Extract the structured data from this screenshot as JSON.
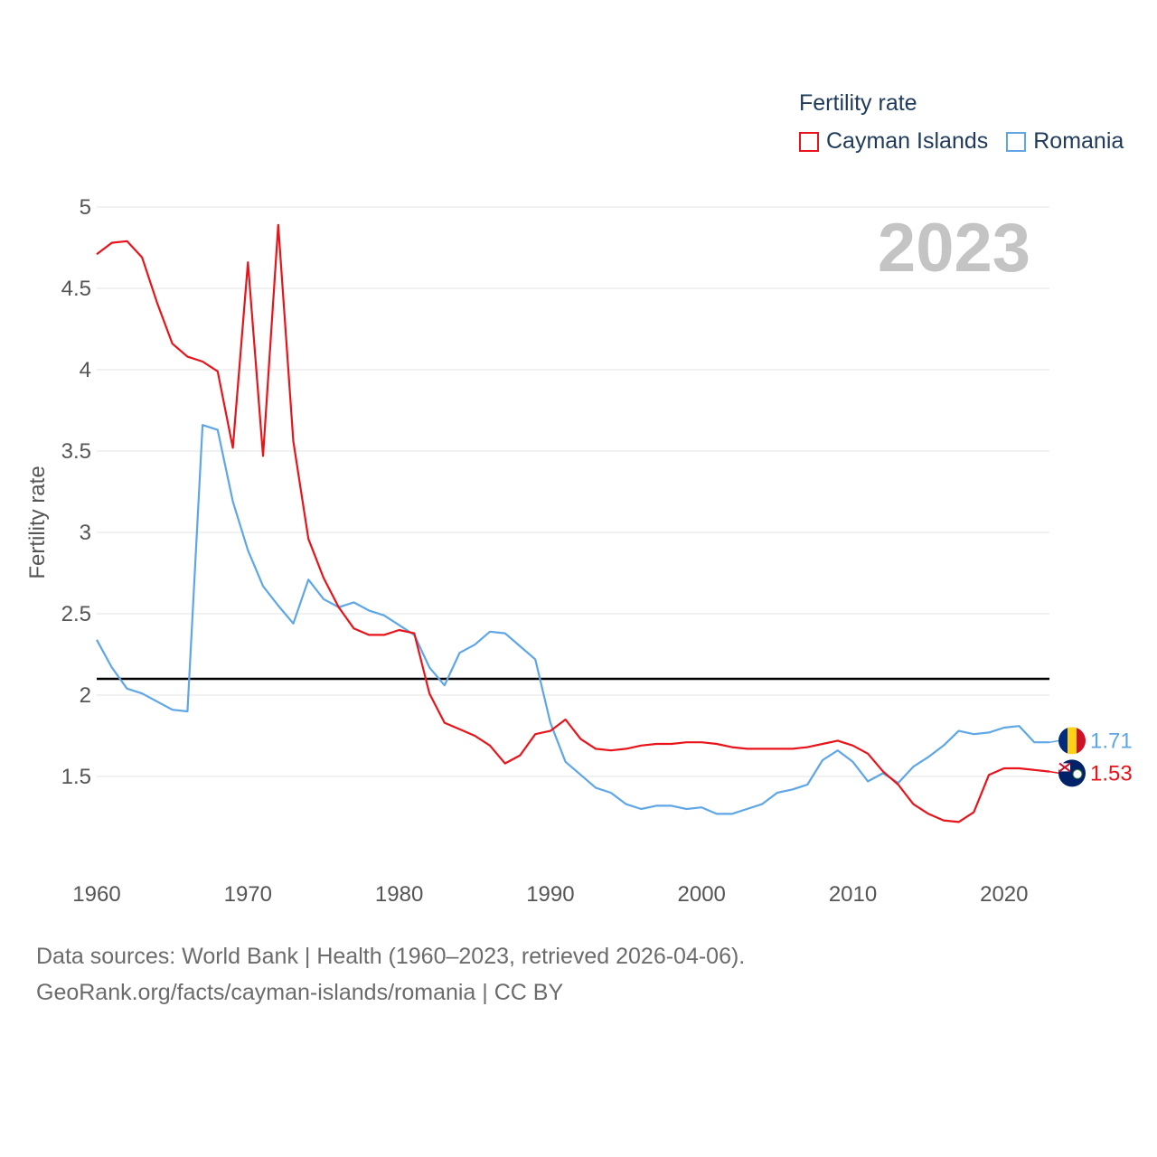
{
  "legend": {
    "title": "Fertility rate",
    "items": [
      {
        "name": "Cayman Islands",
        "color": "#e8141a"
      },
      {
        "name": "Romania",
        "color": "#5ea6e6"
      }
    ]
  },
  "footer": {
    "line1": "Data sources: World Bank | Health (1960–2023, retrieved 2026-04-06).",
    "line2": "GeoRank.org/facts/cayman-islands/romania | CC BY"
  },
  "chart_data": {
    "type": "line",
    "title": "Fertility rate",
    "year_label": "2023",
    "xlabel": "",
    "ylabel": "Fertility rate",
    "xlim": [
      1960,
      2023
    ],
    "ylim": [
      1.0,
      5.0
    ],
    "x_ticks": [
      1960,
      1970,
      1980,
      1990,
      2000,
      2010,
      2020
    ],
    "y_ticks": [
      1.5,
      2,
      2.5,
      3,
      3.5,
      4,
      4.5,
      5
    ],
    "reference_line": {
      "y": 2.1,
      "color": "#000000"
    },
    "x": [
      1960,
      1961,
      1962,
      1963,
      1964,
      1965,
      1966,
      1967,
      1968,
      1969,
      1970,
      1971,
      1972,
      1973,
      1974,
      1975,
      1976,
      1977,
      1978,
      1979,
      1980,
      1981,
      1982,
      1983,
      1984,
      1985,
      1986,
      1987,
      1988,
      1989,
      1990,
      1991,
      1992,
      1993,
      1994,
      1995,
      1996,
      1997,
      1998,
      1999,
      2000,
      2001,
      2002,
      2003,
      2004,
      2005,
      2006,
      2007,
      2008,
      2009,
      2010,
      2011,
      2012,
      2013,
      2014,
      2015,
      2016,
      2017,
      2018,
      2019,
      2020,
      2021,
      2022,
      2023
    ],
    "series": [
      {
        "name": "Cayman Islands",
        "color": "#e8141a",
        "end_label": "1.53",
        "values": [
          4.71,
          4.78,
          4.79,
          4.69,
          4.41,
          4.16,
          4.08,
          4.05,
          3.99,
          3.52,
          4.66,
          3.47,
          4.89,
          3.56,
          2.96,
          2.72,
          2.54,
          2.41,
          2.37,
          2.37,
          2.4,
          2.38,
          2.01,
          1.83,
          1.79,
          1.75,
          1.69,
          1.58,
          1.63,
          1.76,
          1.78,
          1.85,
          1.73,
          1.67,
          1.66,
          1.67,
          1.69,
          1.7,
          1.7,
          1.71,
          1.71,
          1.7,
          1.68,
          1.67,
          1.67,
          1.67,
          1.67,
          1.68,
          1.7,
          1.72,
          1.69,
          1.64,
          1.53,
          1.45,
          1.33,
          1.27,
          1.23,
          1.22,
          1.28,
          1.51,
          1.55,
          1.55,
          1.54,
          1.53
        ]
      },
      {
        "name": "Romania",
        "color": "#5ea6e6",
        "end_label": "1.71",
        "values": [
          2.34,
          2.17,
          2.04,
          2.01,
          1.96,
          1.91,
          1.9,
          3.66,
          3.63,
          3.19,
          2.89,
          2.67,
          2.55,
          2.44,
          2.71,
          2.59,
          2.54,
          2.57,
          2.52,
          2.49,
          2.43,
          2.37,
          2.17,
          2.06,
          2.26,
          2.31,
          2.39,
          2.38,
          2.3,
          2.22,
          1.83,
          1.59,
          1.51,
          1.43,
          1.4,
          1.33,
          1.3,
          1.32,
          1.32,
          1.3,
          1.31,
          1.27,
          1.27,
          1.3,
          1.33,
          1.4,
          1.42,
          1.45,
          1.6,
          1.66,
          1.59,
          1.47,
          1.52,
          1.46,
          1.56,
          1.62,
          1.69,
          1.78,
          1.76,
          1.77,
          1.8,
          1.81,
          1.71,
          1.71
        ]
      }
    ]
  }
}
